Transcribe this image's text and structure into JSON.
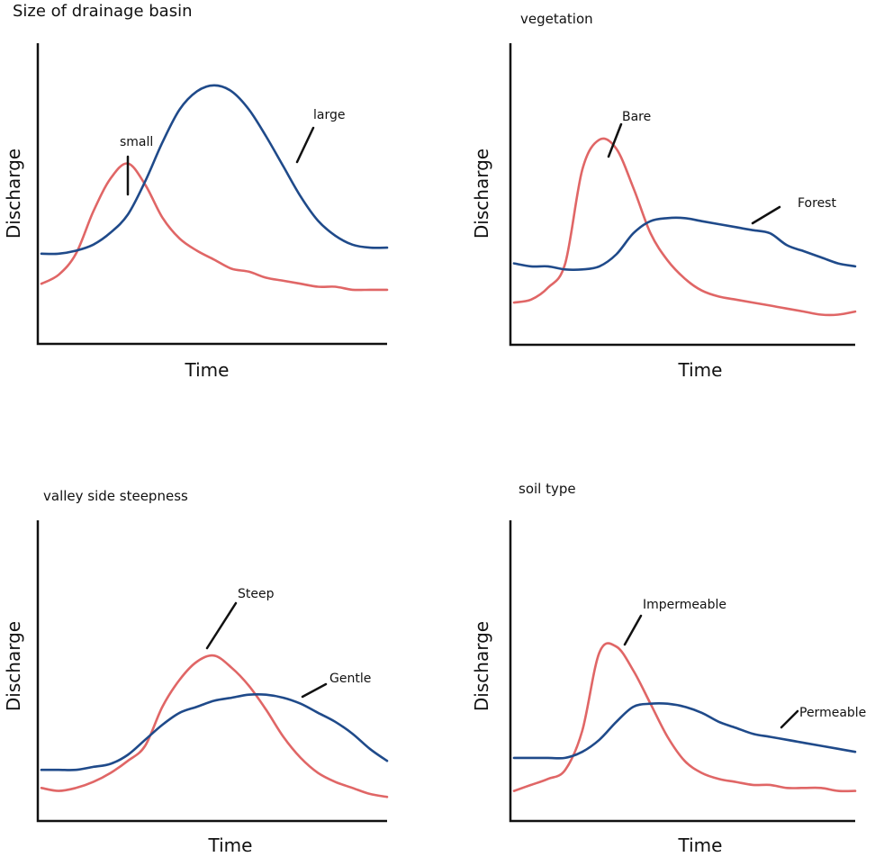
{
  "colors": {
    "red": "#e06666",
    "blue": "#1f4a8a",
    "axis": "#111111"
  },
  "chart_data": [
    {
      "type": "line",
      "title": "Size of drainage basin",
      "xlabel": "Time",
      "ylabel": "Discharge",
      "x": [
        0,
        5,
        10,
        15,
        20,
        25,
        30,
        35,
        40,
        45,
        50,
        55,
        60,
        65,
        70,
        75,
        80,
        85,
        90,
        95,
        100
      ],
      "series": [
        {
          "name": "small",
          "color": "red",
          "values": [
            20,
            23,
            30,
            44,
            55,
            60,
            53,
            42,
            35,
            31,
            28,
            25,
            24,
            22,
            21,
            20,
            19,
            19,
            18,
            18,
            18
          ]
        },
        {
          "name": "large",
          "color": "blue",
          "values": [
            30,
            30,
            31,
            33,
            37,
            43,
            54,
            67,
            78,
            84,
            86,
            84,
            78,
            69,
            59,
            49,
            41,
            36,
            33,
            32,
            32
          ]
        }
      ],
      "ylim": [
        0,
        100
      ]
    },
    {
      "type": "line",
      "title": "vegetation",
      "xlabel": "Time",
      "ylabel": "Discharge",
      "x": [
        0,
        5,
        10,
        15,
        20,
        25,
        30,
        35,
        40,
        45,
        50,
        55,
        60,
        65,
        70,
        75,
        80,
        85,
        90,
        95,
        100
      ],
      "series": [
        {
          "name": "Bare",
          "color": "red",
          "values": [
            14,
            15,
            19,
            27,
            58,
            68,
            65,
            52,
            37,
            28,
            22,
            18,
            16,
            15,
            14,
            13,
            12,
            11,
            10,
            10,
            11
          ]
        },
        {
          "name": "Forest",
          "color": "blue",
          "values": [
            27,
            26,
            26,
            25,
            25,
            26,
            30,
            37,
            41,
            42,
            42,
            41,
            40,
            39,
            38,
            37,
            33,
            31,
            29,
            27,
            26
          ]
        }
      ],
      "ylim": [
        0,
        100
      ]
    },
    {
      "type": "line",
      "title": "valley side steepness",
      "xlabel": "Time",
      "ylabel": "Discharge",
      "x": [
        0,
        5,
        10,
        15,
        20,
        25,
        30,
        35,
        40,
        45,
        50,
        55,
        60,
        65,
        70,
        75,
        80,
        85,
        90,
        95,
        100
      ],
      "series": [
        {
          "name": "Steep",
          "color": "red",
          "values": [
            11,
            10,
            11,
            13,
            16,
            20,
            25,
            38,
            47,
            53,
            55,
            51,
            45,
            37,
            28,
            21,
            16,
            13,
            11,
            9,
            8
          ]
        },
        {
          "name": "Gentle",
          "color": "blue",
          "values": [
            17,
            17,
            17,
            18,
            19,
            22,
            27,
            32,
            36,
            38,
            40,
            41,
            42,
            42,
            41,
            39,
            36,
            33,
            29,
            24,
            20
          ]
        }
      ],
      "ylim": [
        0,
        100
      ]
    },
    {
      "type": "line",
      "title": "soil type",
      "xlabel": "Time",
      "ylabel": "Discharge",
      "x": [
        0,
        5,
        10,
        15,
        20,
        25,
        30,
        35,
        40,
        45,
        50,
        55,
        60,
        65,
        70,
        75,
        80,
        85,
        90,
        95,
        100
      ],
      "series": [
        {
          "name": "Impermeable",
          "color": "red",
          "values": [
            10,
            12,
            14,
            17,
            30,
            56,
            58,
            50,
            39,
            28,
            20,
            16,
            14,
            13,
            12,
            12,
            11,
            11,
            11,
            10,
            10
          ]
        },
        {
          "name": "Permeable",
          "color": "blue",
          "values": [
            21,
            21,
            21,
            21,
            23,
            27,
            33,
            38,
            39,
            39,
            38,
            36,
            33,
            31,
            29,
            28,
            27,
            26,
            25,
            24,
            23
          ]
        }
      ],
      "ylim": [
        0,
        100
      ]
    }
  ]
}
